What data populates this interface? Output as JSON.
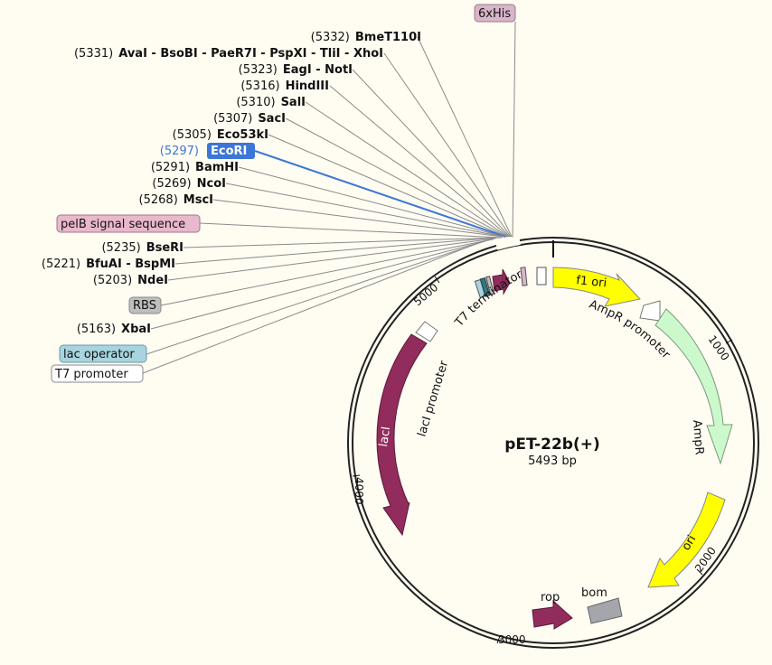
{
  "plasmid": {
    "name": "pET-22b(+)",
    "size_label": "5493 bp",
    "length": 5493
  },
  "colors": {
    "lacI": "#912c5c",
    "rop": "#912c5c",
    "T7term": "#912c5c",
    "ampR": "#ccf9cc",
    "ampR_stroke": "#7a9a7a",
    "ori": "#ffff00",
    "f1ori": "#ffff00",
    "bom": "#a5a6ab",
    "promoter": "#ffffff",
    "highlight": "#3c76d6",
    "pelB": "#eab8cc",
    "his": "#d8b5c8",
    "lacop": "#a7d4de",
    "rbs": "#bebebe"
  },
  "ticks": [
    {
      "pos": 1000,
      "label": "1000"
    },
    {
      "pos": 2000,
      "label": "2000"
    },
    {
      "pos": 3000,
      "label": "3000"
    },
    {
      "pos": 4000,
      "label": "4000"
    },
    {
      "pos": 5000,
      "label": "5000"
    }
  ],
  "sites": [
    {
      "pos": "(5332)",
      "name": "BmeT110I",
      "bp": 5332
    },
    {
      "pos": "(5331)",
      "name": "AvaI - BsoBI - PaeR7I - PspXI - TliI - XhoI",
      "bp": 5331
    },
    {
      "pos": "(5323)",
      "name": "EagI - NotI",
      "bp": 5323
    },
    {
      "pos": "(5316)",
      "name": "HindIII",
      "bp": 5316
    },
    {
      "pos": "(5310)",
      "name": "SalI",
      "bp": 5310
    },
    {
      "pos": "(5307)",
      "name": "SacI",
      "bp": 5307
    },
    {
      "pos": "(5305)",
      "name": "Eco53kI",
      "bp": 5305
    },
    {
      "pos": "(5297)",
      "name": "EcoRI",
      "bp": 5297,
      "highlight": true
    },
    {
      "pos": "(5291)",
      "name": "BamHI",
      "bp": 5291
    },
    {
      "pos": "(5269)",
      "name": "NcoI",
      "bp": 5269
    },
    {
      "pos": "(5268)",
      "name": "MscI",
      "bp": 5268
    },
    {
      "pos": "(5235)",
      "name": "BseRI",
      "bp": 5235
    },
    {
      "pos": "(5221)",
      "name": "BfuAI - BspMI",
      "bp": 5221
    },
    {
      "pos": "(5203)",
      "name": "NdeI",
      "bp": 5203
    },
    {
      "pos": "(5163)",
      "name": "XbaI",
      "bp": 5163
    }
  ],
  "boxed_features": [
    {
      "name": "6xHis"
    },
    {
      "name": "pelB signal sequence"
    },
    {
      "name": "RBS"
    },
    {
      "name": "lac operator"
    },
    {
      "name": "T7 promoter"
    }
  ],
  "arc_labels": {
    "f1_ori": "f1 ori",
    "ampR_promoter": "AmpR promoter",
    "ampR": "AmpR",
    "ori": "ori",
    "rop": "rop",
    "bom": "bom",
    "lacI": "lacI",
    "lacI_promoter": "lacI promoter",
    "t7_terminator": "T7 terminator"
  }
}
